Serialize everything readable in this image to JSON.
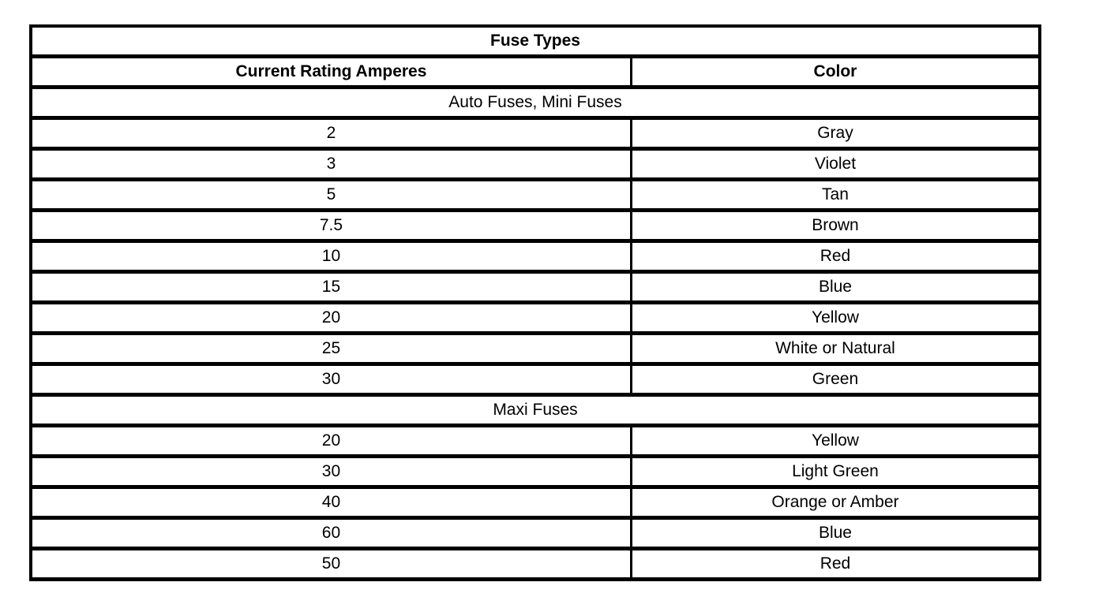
{
  "page": {
    "background_color": "#ffffff",
    "border_color": "#000000",
    "text_color": "#000000"
  },
  "table": {
    "title": "Fuse Types",
    "columns": [
      "Current Rating Amperes",
      "Color"
    ],
    "sections": [
      {
        "label": "Auto Fuses, Mini Fuses",
        "rows": [
          {
            "amperes": "2",
            "color": "Gray"
          },
          {
            "amperes": "3",
            "color": "Violet"
          },
          {
            "amperes": "5",
            "color": "Tan"
          },
          {
            "amperes": "7.5",
            "color": "Brown"
          },
          {
            "amperes": "10",
            "color": "Red"
          },
          {
            "amperes": "15",
            "color": "Blue"
          },
          {
            "amperes": "20",
            "color": "Yellow"
          },
          {
            "amperes": "25",
            "color": "White or Natural"
          },
          {
            "amperes": "30",
            "color": "Green"
          }
        ]
      },
      {
        "label": "Maxi Fuses",
        "rows": [
          {
            "amperes": "20",
            "color": "Yellow"
          },
          {
            "amperes": "30",
            "color": "Light Green"
          },
          {
            "amperes": "40",
            "color": "Orange or Amber"
          },
          {
            "amperes": "60",
            "color": "Blue"
          },
          {
            "amperes": "50",
            "color": "Red"
          }
        ]
      }
    ]
  }
}
